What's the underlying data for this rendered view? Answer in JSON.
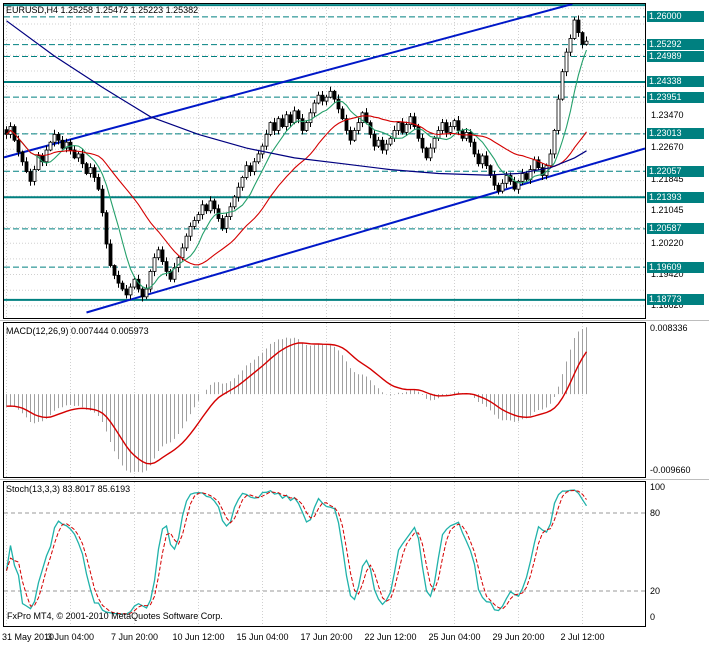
{
  "footer": {
    "copyright": "FxPro MT4, © 2001-2010 MetaQuotes Software Corp."
  },
  "colors": {
    "teal": "#008080",
    "channel_blue": "#0018C8",
    "ma_red": "#D40000",
    "ma_green": "#25A06B",
    "ma_blue": "#000080",
    "grid": "#D0D0D0",
    "hist": "#A0A0A0",
    "stoch_main": "#20B2AA",
    "signal_red": "#D40000",
    "candle_up": "#FFFFFF",
    "candle_down": "#000000",
    "level_label_bg": "#008080"
  },
  "chart_data": [
    {
      "type": "candlestick",
      "symbol": "EURUSD",
      "timeframe": "H4",
      "title": "EURUSD,H4 1.25258 1.25472 1.25223 1.25382",
      "ohlc_current": {
        "open": 1.25258,
        "high": 1.25472,
        "low": 1.25223,
        "close": 1.25382
      },
      "y_range": {
        "top": 1.2633,
        "bottom": 1.1831
      },
      "grid": {
        "start": 1.1862,
        "step": 0.004
      },
      "x_labels": [
        "31 May 2010",
        "3 Jun 04:00",
        "7 Jun 20:00",
        "10 Jun 12:00",
        "15 Jun 04:00",
        "17 Jun 20:00",
        "22 Jun 12:00",
        "25 Jun 04:00",
        "29 Jun 20:00",
        "2 Jul 12:00"
      ],
      "y_ticks": [
        {
          "price": 1.2347,
          "label": "1.23470"
        },
        {
          "price": 1.2267,
          "label": "1.22670"
        },
        {
          "price": 1.21845,
          "label": "1.21845"
        },
        {
          "price": 1.21045,
          "label": "1.21045"
        },
        {
          "price": 1.2022,
          "label": "1.20220"
        },
        {
          "price": 1.1942,
          "label": "1.19420"
        },
        {
          "price": 1.1862,
          "label": "1.18620"
        }
      ],
      "levels": [
        {
          "price": 1.263,
          "label": "",
          "style": "solid"
        },
        {
          "price": 1.26,
          "label": "1.26000",
          "style": "dash"
        },
        {
          "price": 1.25292,
          "label": "1.25292",
          "style": "dash"
        },
        {
          "price": 1.24989,
          "label": "1.24989",
          "style": "dash"
        },
        {
          "price": 1.24338,
          "label": "1.24338",
          "style": "solid"
        },
        {
          "price": 1.23951,
          "label": "1.23951",
          "style": "dash"
        },
        {
          "price": 1.23013,
          "label": "1.23013",
          "style": "dash"
        },
        {
          "price": 1.22057,
          "label": "1.22057",
          "style": "dash"
        },
        {
          "price": 1.21393,
          "label": "1.21393",
          "style": "solid"
        },
        {
          "price": 1.20587,
          "label": "1.20587",
          "style": "dash"
        },
        {
          "price": 1.19609,
          "label": "1.19609",
          "style": "dash"
        },
        {
          "price": 1.18773,
          "label": "1.18773",
          "style": "solid"
        }
      ],
      "channel": [
        {
          "b1": -4,
          "p1": 1.2232,
          "b2": 152,
          "p2": 1.2662
        },
        {
          "b1": 20,
          "p1": 1.1845,
          "b2": 170,
          "p2": 1.2295
        }
      ],
      "ma": {
        "green_period": 8,
        "red_period": 24,
        "blue_points": [
          [
            0,
            1.259
          ],
          [
            12,
            1.25
          ],
          [
            24,
            1.242
          ],
          [
            36,
            1.2345
          ],
          [
            48,
            1.23
          ],
          [
            60,
            1.2265
          ],
          [
            72,
            1.224
          ],
          [
            84,
            1.2225
          ],
          [
            96,
            1.221
          ],
          [
            108,
            1.22
          ],
          [
            120,
            1.2196
          ],
          [
            128,
            1.22
          ],
          [
            136,
            1.2215
          ],
          [
            142,
            1.224
          ],
          [
            145,
            1.2258
          ]
        ]
      },
      "pre_trend": {
        "from": 1.245,
        "to": 1.231,
        "count": 64
      },
      "closes": [
        1.23,
        1.232,
        1.2285,
        1.2255,
        1.223,
        1.2205,
        1.218,
        1.221,
        1.2245,
        1.223,
        1.226,
        1.228,
        1.23,
        1.2285,
        1.2265,
        1.228,
        1.226,
        1.224,
        1.225,
        1.2225,
        1.22,
        1.2215,
        1.219,
        1.216,
        1.21,
        1.202,
        1.1965,
        1.194,
        1.192,
        1.1905,
        1.189,
        1.191,
        1.193,
        1.1905,
        1.1885,
        1.1905,
        1.195,
        1.1985,
        1.2005,
        1.1975,
        1.195,
        1.193,
        1.196,
        1.1985,
        1.201,
        1.204,
        1.2065,
        1.208,
        1.2095,
        1.212,
        1.2105,
        1.213,
        1.211,
        1.2085,
        1.206,
        1.209,
        1.2115,
        1.214,
        1.2165,
        1.219,
        1.222,
        1.2205,
        1.223,
        1.225,
        1.227,
        1.23,
        1.233,
        1.231,
        1.234,
        1.232,
        1.235,
        1.233,
        1.236,
        1.234,
        1.231,
        1.233,
        1.2355,
        1.238,
        1.24,
        1.2385,
        1.2395,
        1.241,
        1.239,
        1.2365,
        1.234,
        1.231,
        1.2285,
        1.231,
        1.233,
        1.2355,
        1.233,
        1.23,
        1.227,
        1.2285,
        1.226,
        1.2275,
        1.229,
        1.231,
        1.233,
        1.2305,
        1.2325,
        1.2345,
        1.232,
        1.229,
        1.2265,
        1.224,
        1.2265,
        1.229,
        1.231,
        1.233,
        1.2305,
        1.232,
        1.2335,
        1.231,
        1.229,
        1.2305,
        1.228,
        1.225,
        1.2225,
        1.2245,
        1.222,
        1.2195,
        1.217,
        1.2155,
        1.2175,
        1.2195,
        1.218,
        1.216,
        1.218,
        1.22,
        1.2185,
        1.221,
        1.2235,
        1.2215,
        1.2195,
        1.222,
        1.225,
        1.231,
        1.239,
        1.246,
        1.251,
        1.2545,
        1.2592,
        1.256,
        1.253,
        1.2538
      ]
    },
    {
      "type": "macd-histogram",
      "label": "MACD(12,26,9) 0.007444 0.005973",
      "params": [
        12,
        26,
        9
      ],
      "values": {
        "main": 0.007444,
        "signal": 0.005973
      },
      "scale": {
        "vmax": 0.009,
        "vmin": -0.0105,
        "top_value": 0.008336,
        "top_label": "0.008336",
        "bottom_value": -0.00966,
        "bottom_label": "-0.009660"
      }
    },
    {
      "type": "stochastic",
      "label": "Stoch(13,3,3) 83.8017 85.6193",
      "params": [
        13,
        3,
        3
      ],
      "values": {
        "main": 83.8017,
        "signal": 85.6193
      },
      "range": [
        0,
        100
      ],
      "level_lines": [
        80,
        20
      ],
      "scale_labels": [
        {
          "value": 100,
          "label": "100"
        },
        {
          "value": 80,
          "label": "80"
        },
        {
          "value": 20,
          "label": "20"
        },
        {
          "value": 0,
          "label": "0"
        }
      ]
    }
  ]
}
